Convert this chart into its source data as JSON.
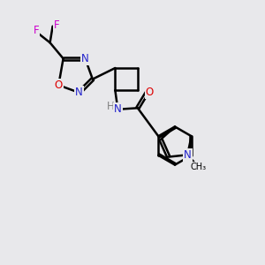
{
  "bg_color": "#e8e8eb",
  "bond_color": "#000000",
  "bond_width": 1.8,
  "dbo": 0.055,
  "atom_colors": {
    "C": "#000000",
    "N": "#2222cc",
    "O": "#dd0000",
    "F": "#cc00cc",
    "H": "#808080"
  },
  "fs": 8.5
}
